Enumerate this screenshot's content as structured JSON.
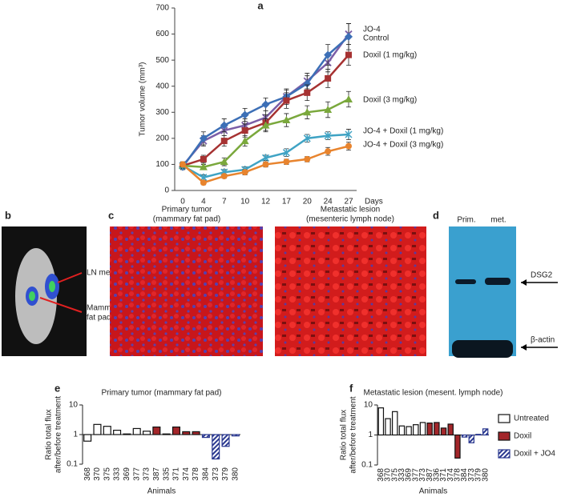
{
  "chart_data": [
    {
      "type": "line",
      "panel": "a",
      "ylabel": "Tumor volume (mm³)",
      "xlabel": "Days",
      "categories": [
        "0",
        "4",
        "7",
        "10",
        "12",
        "17",
        "20",
        "24",
        "27"
      ],
      "ylim": [
        0,
        700
      ],
      "yticks": [
        0,
        100,
        200,
        300,
        400,
        500,
        600,
        700
      ],
      "series": [
        {
          "name": "JO-4",
          "color": "#7b5ea7",
          "marker": "x",
          "values": [
            95,
            190,
            230,
            250,
            280,
            360,
            420,
            490,
            600
          ],
          "errors": [
            10,
            20,
            20,
            25,
            25,
            25,
            30,
            35,
            40
          ]
        },
        {
          "name": "Control",
          "color": "#3c6fb6",
          "marker": "diamond",
          "values": [
            90,
            200,
            250,
            290,
            330,
            360,
            410,
            520,
            590
          ],
          "errors": [
            10,
            25,
            25,
            25,
            25,
            30,
            30,
            40,
            50
          ]
        },
        {
          "name": "Doxil (1 mg/kg)",
          "color": "#a63232",
          "marker": "square",
          "values": [
            95,
            120,
            190,
            230,
            260,
            345,
            375,
            430,
            520
          ],
          "errors": [
            10,
            15,
            20,
            25,
            30,
            30,
            30,
            35,
            40
          ]
        },
        {
          "name": "Doxil (3 mg/kg)",
          "color": "#7aa83c",
          "marker": "triangle",
          "values": [
            95,
            90,
            110,
            190,
            250,
            270,
            300,
            310,
            350
          ],
          "errors": [
            10,
            10,
            15,
            20,
            25,
            25,
            25,
            30,
            30
          ]
        },
        {
          "name": "JO-4 + Doxil (1 mg/kg)",
          "color": "#3fa3c4",
          "marker": "asterisk",
          "values": [
            95,
            50,
            70,
            80,
            125,
            145,
            200,
            210,
            215
          ],
          "errors": [
            10,
            10,
            10,
            10,
            10,
            15,
            15,
            15,
            20
          ]
        },
        {
          "name": "JO-4 + Doxil (3 mg/kg)",
          "color": "#e8842e",
          "marker": "circle",
          "values": [
            100,
            30,
            55,
            70,
            100,
            110,
            120,
            150,
            170
          ],
          "errors": [
            10,
            8,
            8,
            10,
            10,
            10,
            10,
            15,
            15
          ]
        }
      ]
    },
    {
      "type": "bar",
      "panel": "e",
      "title": "Primary tumor (mammary fat pad)",
      "ylabel": [
        "Ratio total flux",
        "after/before treatment"
      ],
      "xlabel": "Animals",
      "log_scale": true,
      "categories": [
        "368",
        "370",
        "375",
        "333",
        "369",
        "377",
        "373",
        "387",
        "335",
        "371",
        "374",
        "378",
        "384",
        "373",
        "379",
        "380"
      ],
      "ylim": [
        0.1,
        10
      ],
      "yticks": [
        0.1,
        1,
        10
      ],
      "legend": false,
      "series": [
        {
          "name": "Untreated",
          "color": "#ffffff",
          "values": [
            0.6,
            2.2,
            1.9,
            1.4,
            1.05,
            1.6,
            1.3,
            null,
            null,
            null,
            null,
            null,
            null,
            null,
            null,
            null
          ]
        },
        {
          "name": "Doxil",
          "color": "#a3262a",
          "values": [
            null,
            null,
            null,
            null,
            null,
            null,
            null,
            1.8,
            1.05,
            1.8,
            1.25,
            1.25,
            null,
            null,
            null,
            null
          ]
        },
        {
          "name": "Doxil + JO4",
          "color": "#2b3990",
          "pattern": "hatch",
          "values": [
            null,
            null,
            null,
            null,
            null,
            null,
            null,
            null,
            null,
            null,
            null,
            null,
            0.8,
            0.15,
            0.4,
            0.9
          ]
        }
      ]
    },
    {
      "type": "bar",
      "panel": "f",
      "title": "Metastatic lesion (mesent. lymph node)",
      "ylabel": [
        "Ratio total flux",
        "after/before treatment"
      ],
      "xlabel": "Animals",
      "log_scale": true,
      "categories": [
        "368",
        "370",
        "375",
        "333",
        "369",
        "377",
        "373",
        "387",
        "336",
        "371",
        "374",
        "378",
        "384",
        "373",
        "379",
        "380"
      ],
      "ylim": [
        0.1,
        10
      ],
      "yticks": [
        0.1,
        1,
        10
      ],
      "legend": true,
      "series": [
        {
          "name": "Untreated",
          "color": "#ffffff",
          "values": [
            8,
            3.5,
            6,
            2,
            1.9,
            2.2,
            2.6,
            null,
            null,
            null,
            null,
            null,
            null,
            null,
            null,
            null
          ]
        },
        {
          "name": "Doxil",
          "color": "#a3262a",
          "values": [
            null,
            null,
            null,
            null,
            null,
            null,
            null,
            2.5,
            2.6,
            1.7,
            2.3,
            0.17,
            null,
            null,
            null,
            null
          ]
        },
        {
          "name": "Doxil + JO4",
          "color": "#2b3990",
          "pattern": "hatch",
          "values": [
            null,
            null,
            null,
            null,
            null,
            null,
            null,
            null,
            null,
            null,
            null,
            null,
            0.85,
            0.55,
            1.05,
            1.6
          ]
        }
      ]
    }
  ],
  "panels": {
    "b": {
      "letter": "b",
      "ln": "LN mets",
      "mamm": [
        "Mamm.",
        "fat pad"
      ]
    },
    "c": {
      "letter": "c",
      "left": [
        "Primary tumor",
        "(mammary fat pad)"
      ],
      "right": [
        "Metastatic lesion",
        "(mesenteric lymph node)"
      ]
    },
    "d": {
      "letter": "d",
      "lanes": [
        "Prim.",
        "met."
      ],
      "bands": [
        "DSG2",
        "β-actin"
      ]
    }
  }
}
